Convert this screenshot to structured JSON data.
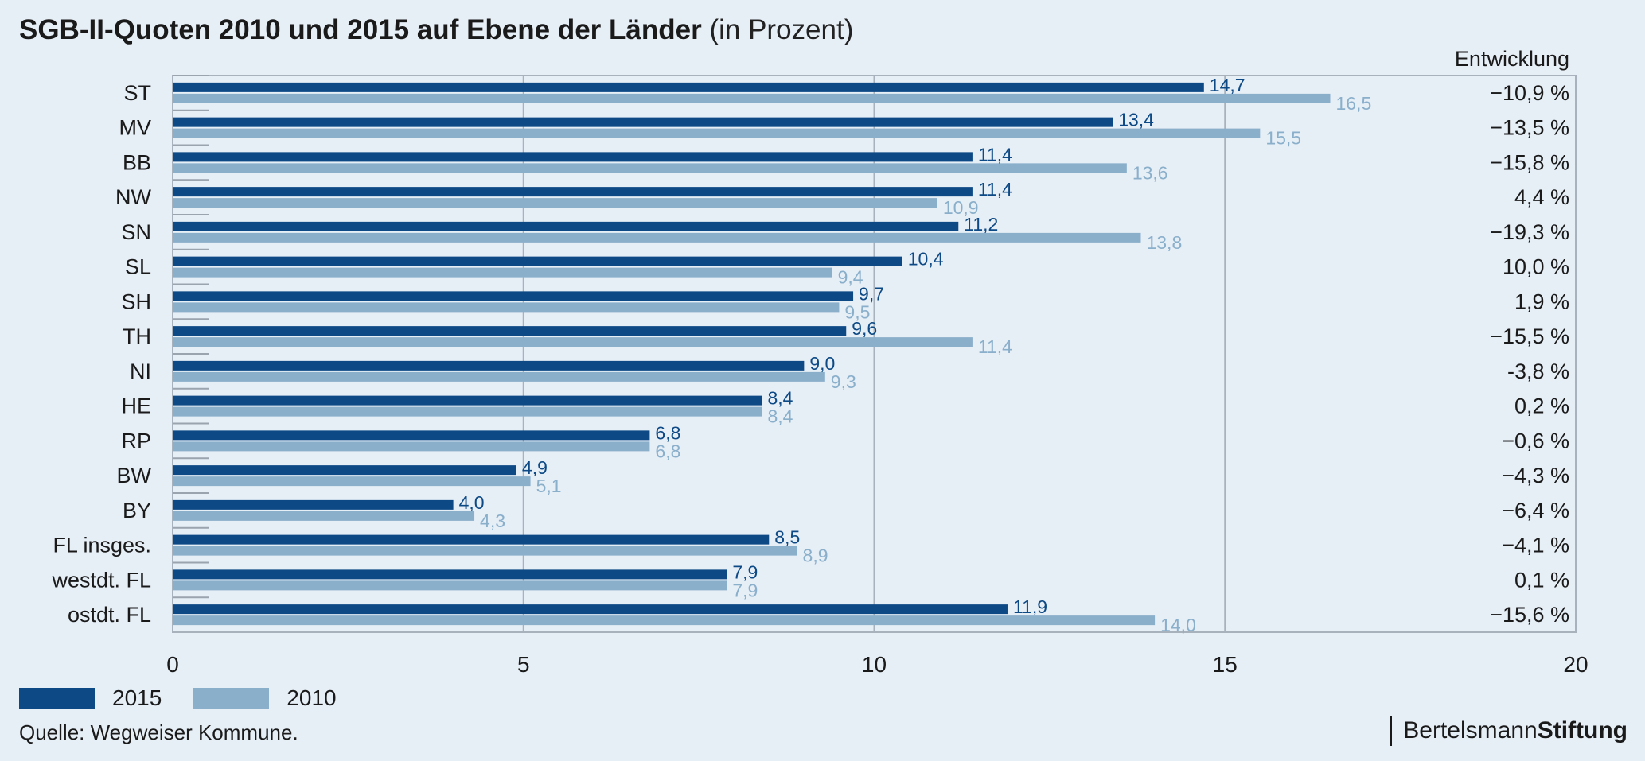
{
  "header": {
    "title_main": "SGB-II-Quoten 2010 und 2015 auf Ebene der Länder",
    "title_sub": "(in Prozent)"
  },
  "chart_data": {
    "type": "bar",
    "orientation": "horizontal",
    "categories": [
      "ST",
      "MV",
      "BB",
      "NW",
      "SN",
      "SL",
      "SH",
      "TH",
      "NI",
      "HE",
      "RP",
      "BW",
      "BY",
      "FL insges.",
      "westdt. FL",
      "ostdt. FL"
    ],
    "series": [
      {
        "name": "2015",
        "color": "#0d4a85",
        "values": [
          14.7,
          13.4,
          11.4,
          11.4,
          11.2,
          10.4,
          9.7,
          9.6,
          9.0,
          8.4,
          6.8,
          4.9,
          4.0,
          8.5,
          7.9,
          11.9
        ],
        "labels": [
          "14,7",
          "13,4",
          "11,4",
          "11,4",
          "11,2",
          "10,4",
          "9,7",
          "9,6",
          "9,0",
          "8,4",
          "6,8",
          "4,9",
          "4,0",
          "8,5",
          "7,9",
          "11,9"
        ]
      },
      {
        "name": "2010",
        "color": "#8aafcb",
        "values": [
          16.5,
          15.5,
          13.6,
          10.9,
          13.8,
          9.4,
          9.5,
          11.4,
          9.3,
          8.4,
          6.8,
          5.1,
          4.3,
          8.9,
          7.9,
          14.0
        ],
        "labels": [
          "16,5",
          "15,5",
          "13,6",
          "10,9",
          "13,8",
          "9,4",
          "9,5",
          "11,4",
          "9,3",
          "8,4",
          "6,8",
          "5,1",
          "4,3",
          "8,9",
          "7,9",
          "14,0"
        ]
      }
    ],
    "xlim": [
      0,
      20
    ],
    "xticks": [
      "0",
      "5",
      "10",
      "15",
      "20"
    ],
    "xtick_values": [
      0,
      5,
      10,
      15,
      20
    ],
    "entwicklung_header": "Entwicklung",
    "entwicklung": [
      "−10,9 %",
      "−13,5 %",
      "−15,8 %",
      "4,4 %",
      "−19,3 %",
      "10,0 %",
      "1,9 %",
      "−15,5 %",
      "-3,8 %",
      "0,2 %",
      "−0,6 %",
      "−4,3 %",
      "−6,4 %",
      "−4,1 %",
      "0,1 %",
      "−15,6 %"
    ],
    "grid": true,
    "legend_position": "bottom-left"
  },
  "legend": [
    {
      "label": "2015",
      "color": "#0d4a85"
    },
    {
      "label": "2010",
      "color": "#8aafcb"
    }
  ],
  "footer": {
    "source": "Quelle: Wegweiser Kommune.",
    "brand_left": "Bertelsmann",
    "brand_right": "Stiftung"
  }
}
